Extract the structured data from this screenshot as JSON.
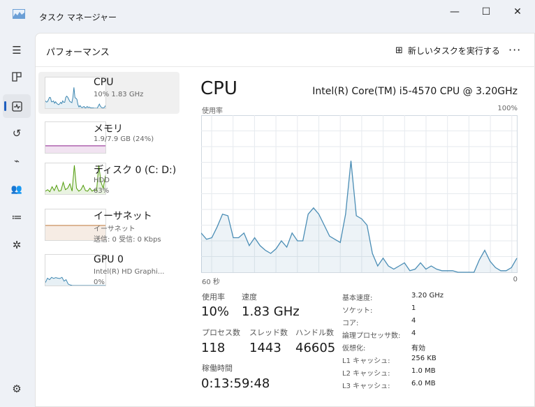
{
  "window": {
    "title": "タスク マネージャー",
    "minimize": "—",
    "maximize": "☐",
    "close": "✕"
  },
  "nav": {
    "items": [
      {
        "icon": "hamburger-icon"
      },
      {
        "icon": "processes-icon"
      },
      {
        "icon": "performance-icon",
        "selected": true
      },
      {
        "icon": "app-history-icon"
      },
      {
        "icon": "startup-icon"
      },
      {
        "icon": "users-icon"
      },
      {
        "icon": "details-icon"
      },
      {
        "icon": "services-icon"
      }
    ],
    "settings_icon": "gear-icon"
  },
  "header": {
    "title": "パフォーマンス",
    "run_task": "新しいタスクを実行する",
    "more": "···"
  },
  "devices": [
    {
      "name": "CPU",
      "sub1": "10%  1.83 GHz",
      "sub2": "",
      "color": "#3a85b0",
      "values": [
        25,
        21,
        22,
        29,
        37,
        36,
        22,
        22,
        25,
        17,
        22,
        17,
        14,
        12,
        15,
        20,
        16,
        25,
        20,
        20,
        37,
        41,
        37,
        30,
        23,
        21,
        19,
        37,
        71,
        36,
        34,
        30,
        12,
        4,
        9,
        4,
        2,
        4,
        6,
        1,
        2,
        6,
        2,
        4,
        2,
        1,
        1,
        1,
        0,
        0,
        0,
        0,
        8,
        14,
        7,
        3,
        1,
        1,
        3,
        9
      ]
    },
    {
      "name": "メモリ",
      "sub1": "1.9/7.9 GB (24%)",
      "sub2": "",
      "color": "#8b1a8b",
      "values": [
        24,
        24,
        24,
        24,
        24,
        24,
        24,
        24,
        24,
        24,
        24,
        24,
        24,
        24,
        24,
        24,
        24,
        24,
        24,
        24,
        24,
        24,
        24,
        24,
        24,
        24,
        24,
        24,
        24,
        24
      ]
    },
    {
      "name": "ディスク 0 (C: D:)",
      "sub1": "HDD",
      "sub2": "63%",
      "color": "#4e9a06",
      "values": [
        10,
        15,
        8,
        25,
        12,
        30,
        10,
        12,
        40,
        15,
        20,
        35,
        10,
        98,
        20,
        10,
        15,
        30,
        12,
        10,
        20,
        10,
        15,
        12,
        98,
        40,
        20,
        63
      ]
    },
    {
      "name": "イーサネット",
      "sub1": "イーサネット",
      "sub2": "送信: 0 受信: 0 Kbps",
      "color": "#b5651d",
      "values": [
        50,
        50,
        50,
        50,
        50,
        50,
        50,
        50,
        50,
        50,
        50,
        50,
        50,
        50,
        50,
        50,
        50,
        50,
        50,
        50
      ]
    },
    {
      "name": "GPU 0",
      "sub1": "Intel(R) HD Graphi...",
      "sub2": "0%",
      "color": "#3a85b0",
      "values": [
        10,
        25,
        20,
        28,
        24,
        27,
        25,
        24,
        28,
        15,
        20,
        5,
        2,
        0,
        0,
        0,
        0,
        0,
        0,
        0,
        0,
        0,
        0,
        0,
        0,
        0,
        0,
        0,
        0,
        0
      ]
    }
  ],
  "detail": {
    "title": "CPU",
    "model": "Intel(R) Core(TM) i5-4570 CPU @ 3.20GHz",
    "y_label": "使用率",
    "y_max_label": "100%",
    "x_left_label": "60 秒",
    "x_right_label": "0"
  },
  "chart_data": {
    "type": "area",
    "title": "",
    "ylabel": "使用率",
    "ylim": [
      0,
      100
    ],
    "xlim": [
      60,
      0
    ],
    "grid": true,
    "color": "#4a8db5",
    "values": [
      25,
      21,
      22,
      29,
      37,
      36,
      22,
      22,
      25,
      17,
      22,
      17,
      14,
      12,
      15,
      20,
      16,
      25,
      20,
      20,
      37,
      41,
      37,
      30,
      23,
      21,
      19,
      37,
      71,
      36,
      34,
      30,
      12,
      4,
      9,
      4,
      2,
      4,
      6,
      1,
      2,
      6,
      2,
      4,
      2,
      1,
      1,
      1,
      0,
      0,
      0,
      0,
      8,
      14,
      7,
      3,
      1,
      1,
      3,
      9
    ]
  },
  "stats": {
    "usage_label": "使用率",
    "usage": "10%",
    "speed_label": "速度",
    "speed": "1.83 GHz",
    "proc_label": "プロセス数",
    "proc": "118",
    "thread_label": "スレッド数",
    "thread": "1443",
    "handle_label": "ハンドル数",
    "handle": "46605",
    "uptime_label": "稼働時間",
    "uptime": "0:13:59:48"
  },
  "specs": [
    {
      "k": "基本速度:",
      "v": "3.20 GHz"
    },
    {
      "k": "ソケット:",
      "v": "1"
    },
    {
      "k": "コア:",
      "v": "4"
    },
    {
      "k": "論理プロセッサ数:",
      "v": "4"
    },
    {
      "k": "仮想化:",
      "v": "有効"
    },
    {
      "k": "L1 キャッシュ:",
      "v": "256 KB"
    },
    {
      "k": "L2 キャッシュ:",
      "v": "1.0 MB"
    },
    {
      "k": "L3 キャッシュ:",
      "v": "6.0 MB"
    }
  ]
}
